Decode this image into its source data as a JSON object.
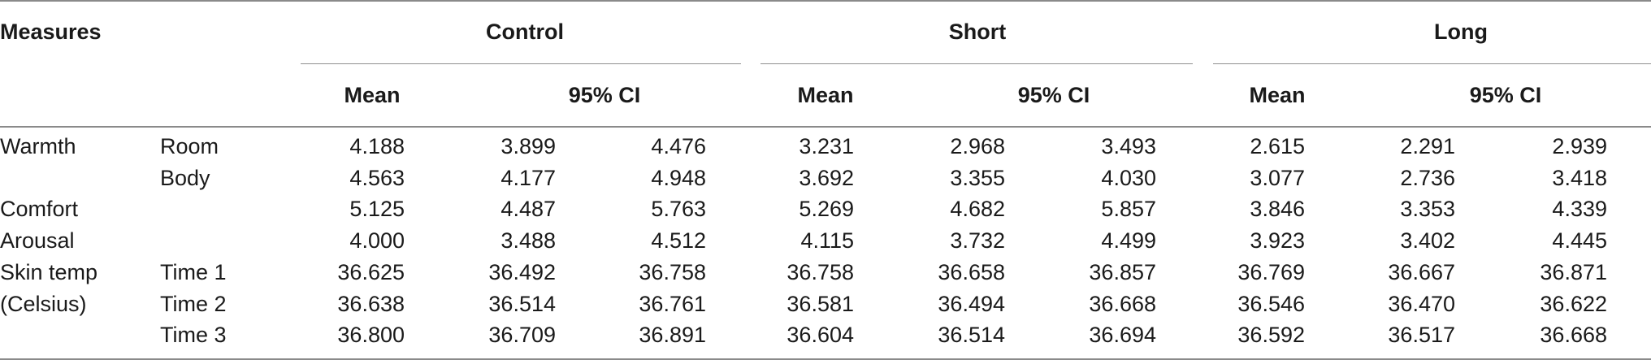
{
  "header": {
    "measures": "Measures",
    "groups": [
      "Control",
      "Short",
      "Long"
    ],
    "mean": "Mean",
    "ci": "95% CI"
  },
  "rows": [
    {
      "label": "Warmth",
      "sub": "Room",
      "values": [
        "4.188",
        "3.899",
        "4.476",
        "3.231",
        "2.968",
        "3.493",
        "2.615",
        "2.291",
        "2.939"
      ]
    },
    {
      "label": "",
      "sub": "Body",
      "values": [
        "4.563",
        "4.177",
        "4.948",
        "3.692",
        "3.355",
        "4.030",
        "3.077",
        "2.736",
        "3.418"
      ]
    },
    {
      "label": "Comfort",
      "sub": "",
      "values": [
        "5.125",
        "4.487",
        "5.763",
        "5.269",
        "4.682",
        "5.857",
        "3.846",
        "3.353",
        "4.339"
      ]
    },
    {
      "label": "Arousal",
      "sub": "",
      "values": [
        "4.000",
        "3.488",
        "4.512",
        "4.115",
        "3.732",
        "4.499",
        "3.923",
        "3.402",
        "4.445"
      ]
    },
    {
      "label": "Skin temp",
      "sub": "Time 1",
      "values": [
        "36.625",
        "36.492",
        "36.758",
        "36.758",
        "36.658",
        "36.857",
        "36.769",
        "36.667",
        "36.871"
      ]
    },
    {
      "label": "(Celsius)",
      "sub": "Time 2",
      "values": [
        "36.638",
        "36.514",
        "36.761",
        "36.581",
        "36.494",
        "36.668",
        "36.546",
        "36.470",
        "36.622"
      ]
    },
    {
      "label": "",
      "sub": "Time 3",
      "values": [
        "36.800",
        "36.709",
        "36.891",
        "36.604",
        "36.514",
        "36.694",
        "36.592",
        "36.517",
        "36.668"
      ]
    }
  ]
}
